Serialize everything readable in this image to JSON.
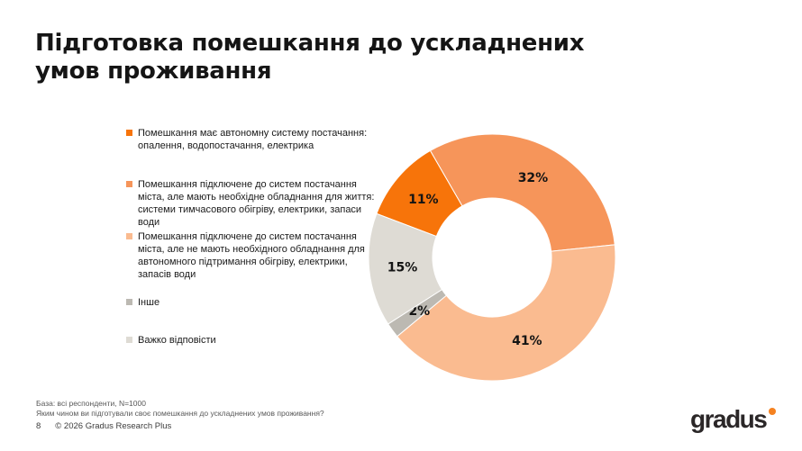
{
  "slide": {
    "title": "Підготовка помешкання до ускладнених\nумов проживання",
    "footnote_line1": "База: всі респонденти, N=1000",
    "footnote_line2": "Яким чином ви підготували своє помешкання до ускладнених умов проживання?",
    "page_number": "8",
    "copyright": "© 2026 Gradus Research Plus"
  },
  "brand": {
    "logo_text": "gradus",
    "dot_color": "#F58220"
  },
  "chart_data": {
    "type": "donut",
    "legend_position": "left",
    "start_angle_deg": -69.2,
    "clockwise": true,
    "hole_ratio": 0.48,
    "value_suffix": "%",
    "slices": [
      {
        "label": "Помешкання має автономну систему постачання: опалення, водопостачання, електрика",
        "value": 11,
        "color": "#F7740A"
      },
      {
        "label": "Помешкання підключене до систем постачання міста, але мають необхідне обладнання для життя: системи тимчасового обігріву, електрики, запаси води",
        "value": 32,
        "color": "#F6955A"
      },
      {
        "label": "Помешкання підключене до систем постачання міста, але не мають необхідного обладнання для автономного підтримання обігріву, електрики, запасів води",
        "value": 41,
        "color": "#FABB90"
      },
      {
        "label": "Інше",
        "value": 2,
        "color": "#BCB9B2"
      },
      {
        "label": "Важко відповісти",
        "value": 15,
        "color": "#DEDBD4"
      }
    ]
  }
}
